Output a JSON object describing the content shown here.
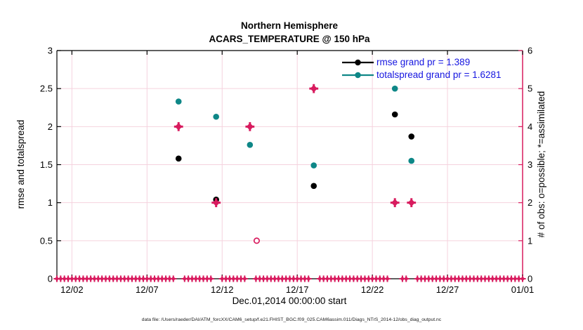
{
  "chart_data": {
    "type": "scatter",
    "title": "Northern Hemisphere",
    "subtitle": "ACARS_TEMPERATURE @ 150 hPa",
    "xlabel": "Dec.01,2014 00:00:00 start",
    "ylabel_left": "rmse and totalspread",
    "ylabel_right": "# of obs: o=possible; *=assimilated",
    "xlim_days": [
      0,
      31
    ],
    "x_tick_days": [
      1,
      6,
      11,
      16,
      21,
      26,
      31
    ],
    "x_tick_labels": [
      "12/02",
      "12/07",
      "12/12",
      "12/17",
      "12/22",
      "12/27",
      "01/01"
    ],
    "ylim_left": [
      0,
      3
    ],
    "y_left_ticks": [
      0,
      0.5,
      1,
      1.5,
      2,
      2.5,
      3
    ],
    "y_left_tick_labels": [
      "0",
      "0.5",
      "1",
      "1.5",
      "2",
      "2.5",
      "3"
    ],
    "ylim_right": [
      0,
      6
    ],
    "y_right_ticks": [
      0,
      1,
      2,
      3,
      4,
      5,
      6
    ],
    "y_right_tick_labels": [
      "0",
      "1",
      "2",
      "3",
      "4",
      "5",
      "6"
    ],
    "grid": true,
    "legend_position": "top-right-inside",
    "legend": [
      {
        "label": "rmse grand pr = 1.389",
        "color": "#000000"
      },
      {
        "label": "totalspread grand pr = 1.6281",
        "color": "#0e8787"
      }
    ],
    "series": [
      {
        "name": "rmse",
        "axis": "left",
        "marker": "dot",
        "color": "#000000",
        "points": [
          {
            "day": 8.1,
            "value": 1.58
          },
          {
            "day": 10.6,
            "value": 1.04
          },
          {
            "day": 17.1,
            "value": 1.22
          },
          {
            "day": 22.5,
            "value": 2.16
          },
          {
            "day": 23.6,
            "value": 1.87
          }
        ]
      },
      {
        "name": "totalspread",
        "axis": "left",
        "marker": "dot",
        "color": "#0e8787",
        "points": [
          {
            "day": 8.1,
            "value": 2.33
          },
          {
            "day": 10.6,
            "value": 2.13
          },
          {
            "day": 12.85,
            "value": 1.76
          },
          {
            "day": 17.1,
            "value": 1.49
          },
          {
            "day": 22.5,
            "value": 2.5
          },
          {
            "day": 23.6,
            "value": 1.55
          }
        ]
      },
      {
        "name": "obs-assimilated",
        "axis": "right",
        "marker": "star",
        "color": "#d81b5e",
        "points": [
          {
            "day": 8.1,
            "value": 4
          },
          {
            "day": 10.6,
            "value": 2
          },
          {
            "day": 12.85,
            "value": 4
          },
          {
            "day": 17.1,
            "value": 5
          },
          {
            "day": 22.5,
            "value": 2
          },
          {
            "day": 23.6,
            "value": 2
          }
        ]
      },
      {
        "name": "obs-possible",
        "axis": "right",
        "marker": "open-circle",
        "color": "#d81b5e",
        "points": [
          {
            "day": 13.3,
            "value": 1
          }
        ]
      }
    ],
    "zero_row": {
      "axis": "right",
      "value": 0,
      "marker": "star",
      "color": "#d81b5e",
      "step_days": 0.25,
      "range_days": [
        0,
        31
      ],
      "gap_days": [
        8.1,
        10.6,
        12.85,
        17.1,
        22.5,
        23.6
      ],
      "gap_halfwidth_days": 0.28
    },
    "colors": {
      "left_axis": "#000000",
      "right_axis": "#d81b5e",
      "grid": "#f5d2de",
      "legend_text": "#1515e0",
      "teal": "#0e8787",
      "pink": "#d81b5e"
    }
  },
  "caption": "data file: /Users/raeder/DAI/ATM_forcXX/CAM6_setup/f.e21.FHIST_BGC.f09_025.CAM6assim.011/Diags_NTrS_2014-12/obs_diag_output.nc"
}
